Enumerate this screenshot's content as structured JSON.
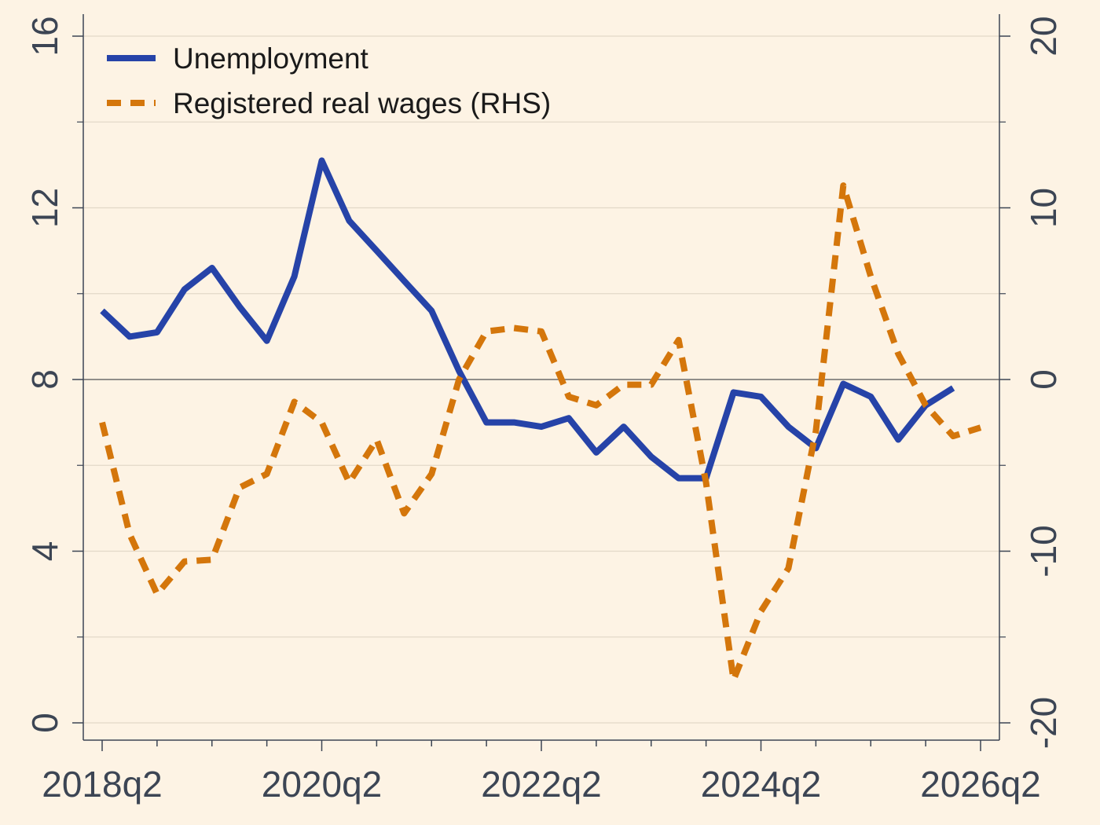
{
  "chart_data": {
    "type": "line",
    "title": "",
    "xlabel": "",
    "ylabel": "",
    "x": [
      "2018q2",
      "2018q3",
      "2018q4",
      "2019q1",
      "2019q2",
      "2019q3",
      "2019q4",
      "2020q1",
      "2020q2",
      "2020q3",
      "2020q4",
      "2021q1",
      "2021q2",
      "2021q3",
      "2021q4",
      "2022q1",
      "2022q2",
      "2022q3",
      "2022q4",
      "2023q1",
      "2023q2",
      "2023q3",
      "2023q4",
      "2024q1",
      "2024q2",
      "2024q3",
      "2024q4",
      "2025q1",
      "2025q2",
      "2025q3",
      "2025q4",
      "2026q1",
      "2026q2"
    ],
    "x_ticks": [
      "2018q2",
      "2020q2",
      "2022q2",
      "2024q2",
      "2026q2"
    ],
    "y_left": {
      "lim": [
        0,
        16
      ],
      "ticks": [
        "0",
        "4",
        "8",
        "12",
        "16"
      ]
    },
    "y_right": {
      "lim": [
        -20,
        20
      ],
      "ticks": [
        "-20",
        "-10",
        "0",
        "10",
        "20"
      ]
    },
    "grid": true,
    "legend_position": "top-left",
    "series": [
      {
        "name": "Unemployment",
        "axis": "left",
        "color": "#2643A8",
        "style": "solid",
        "values": [
          9.6,
          9.0,
          9.1,
          10.1,
          10.6,
          9.7,
          8.9,
          10.4,
          13.1,
          11.7,
          11.0,
          10.3,
          9.6,
          8.2,
          7.0,
          7.0,
          6.9,
          7.1,
          6.3,
          6.9,
          6.2,
          5.7,
          5.7,
          7.7,
          7.6,
          6.9,
          6.4,
          7.9,
          7.6,
          6.6,
          7.4,
          7.8,
          null
        ]
      },
      {
        "name": "Registered real wages (RHS)",
        "axis": "right",
        "color": "#D4760B",
        "style": "dashed",
        "values": [
          -2.5,
          -9.0,
          -12.5,
          -10.6,
          -10.5,
          -6.3,
          -5.5,
          -1.3,
          -2.5,
          -6.0,
          -3.5,
          -7.8,
          -5.5,
          0.0,
          2.8,
          3.0,
          2.8,
          -1.0,
          -1.5,
          -0.3,
          -0.3,
          2.3,
          -6.0,
          -17.5,
          -13.5,
          -11.0,
          -3.0,
          11.3,
          6.0,
          1.5,
          -1.5,
          -3.3,
          -2.8
        ]
      }
    ],
    "reference_line": {
      "axis": "left",
      "value": 8
    }
  }
}
